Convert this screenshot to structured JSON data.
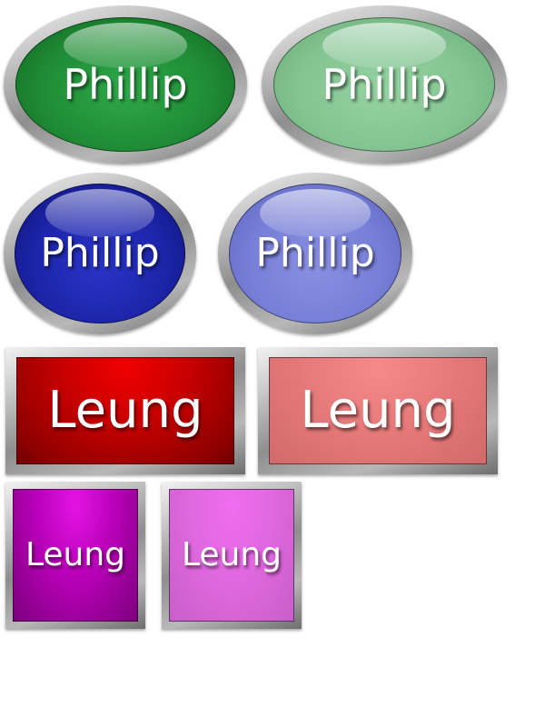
{
  "buttons": [
    {
      "label": "Phillip",
      "shape": "oval",
      "color": "#1f8c35",
      "state": "normal"
    },
    {
      "label": "Phillip",
      "shape": "oval",
      "color": "#84c492",
      "state": "light"
    },
    {
      "label": "Phillip",
      "shape": "oval",
      "color": "#1c24a8",
      "state": "normal"
    },
    {
      "label": "Phillip",
      "shape": "oval",
      "color": "#767ed6",
      "state": "light"
    },
    {
      "label": "Leung",
      "shape": "rectangle",
      "color": "#c80000",
      "state": "normal"
    },
    {
      "label": "Leung",
      "shape": "rectangle",
      "color": "#e77a7a",
      "state": "light"
    },
    {
      "label": "Leung",
      "shape": "square",
      "color": "#b800b8",
      "state": "normal"
    },
    {
      "label": "Leung",
      "shape": "square",
      "color": "#e068e0",
      "state": "light"
    }
  ]
}
